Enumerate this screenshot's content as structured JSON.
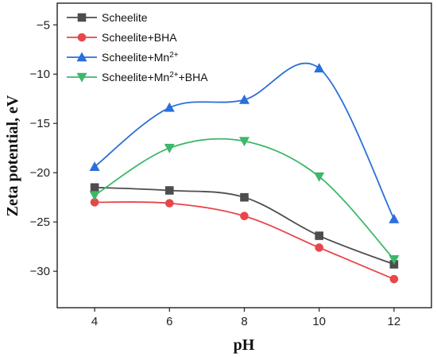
{
  "chart_data": {
    "type": "line",
    "title": "",
    "xlabel": "pH",
    "ylabel": "Zeta potential, eV",
    "x": [
      4,
      6,
      8,
      10,
      12
    ],
    "xticks": [
      4,
      6,
      8,
      10,
      12
    ],
    "yticks": [
      -30,
      -25,
      -20,
      -15,
      -10,
      -5
    ],
    "xlim": [
      3,
      13
    ],
    "ylim": [
      -33.7,
      -2.8
    ],
    "grid": false,
    "legend_position": "top-left",
    "series": [
      {
        "name": "Scheelite",
        "name_html": "Scheelite",
        "values": [
          -21.5,
          -21.8,
          -22.5,
          -26.4,
          -29.3
        ],
        "color": "#4d4d4d",
        "marker": "square"
      },
      {
        "name": "Scheelite+BHA",
        "name_html": "Scheelite+BHA",
        "values": [
          -23.0,
          -23.1,
          -24.4,
          -27.6,
          -30.8
        ],
        "color": "#e8464a",
        "marker": "circle"
      },
      {
        "name": "Scheelite+Mn2+",
        "name_html": "Scheelite+Mn<tspan baseline-shift=\"super\" font-size=\"10\">2+</tspan>",
        "values": [
          -19.4,
          -13.4,
          -12.6,
          -9.4,
          -24.7
        ],
        "color": "#2a6fdb",
        "marker": "triangle-up"
      },
      {
        "name": "Scheelite+Mn2++BHA",
        "name_html": "Scheelite+Mn<tspan baseline-shift=\"super\" font-size=\"10\">2+</tspan><tspan baseline-shift=\"0\">+BHA</tspan>",
        "values": [
          -22.3,
          -17.5,
          -16.8,
          -20.4,
          -28.8
        ],
        "color": "#3bb86a",
        "marker": "triangle-down"
      }
    ]
  }
}
